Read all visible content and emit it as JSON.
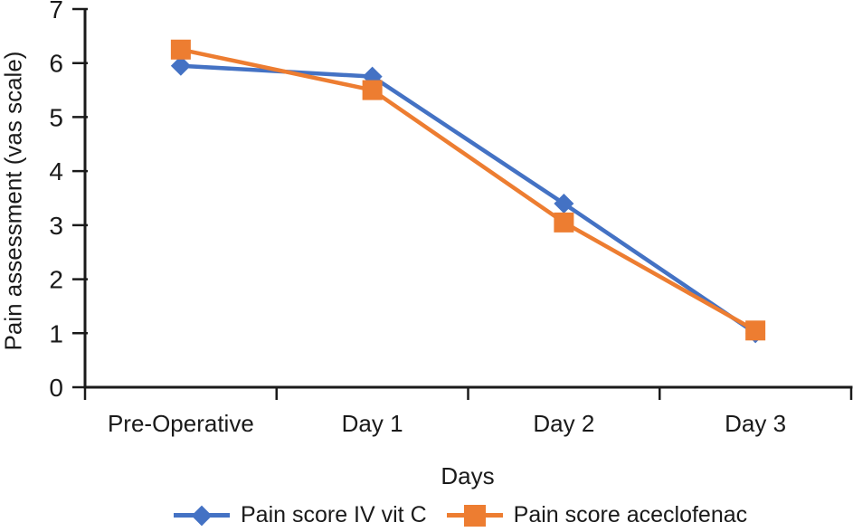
{
  "chart_data": {
    "type": "line",
    "title": "",
    "xlabel": "Days",
    "ylabel": "Pain assessment (vas scale)",
    "ylim": [
      0,
      7
    ],
    "ytick_step": 1,
    "yticks": [
      0,
      1,
      2,
      3,
      4,
      5,
      6,
      7
    ],
    "grid": false,
    "legend_position": "bottom",
    "axis_color": "#1a1a1a",
    "categories": [
      "Pre-Operative",
      "Day 1",
      "Day 2",
      "Day 3"
    ],
    "series": [
      {
        "name": "Pain score IV vit C",
        "values": [
          5.95,
          5.75,
          3.4,
          1.0
        ],
        "color": "#4472C4",
        "marker": "diamond"
      },
      {
        "name": "Pain score aceclofenac",
        "values": [
          6.25,
          5.5,
          3.05,
          1.05
        ],
        "color": "#ED7D31",
        "marker": "square"
      }
    ]
  }
}
